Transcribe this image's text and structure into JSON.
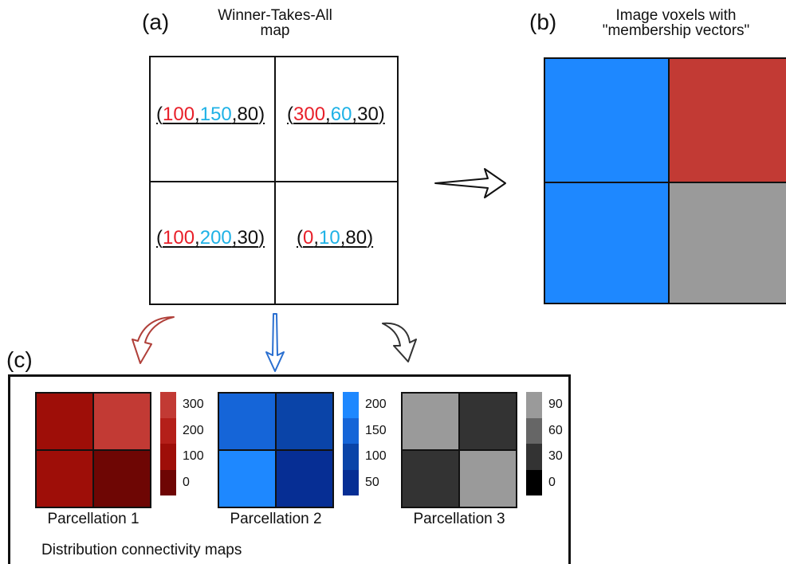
{
  "panel_a": {
    "label": "(a)",
    "title_line1": "Winner-Takes-All",
    "title_line2": "map",
    "cells": [
      {
        "v1": "100",
        "v2": "150",
        "v3": "80"
      },
      {
        "v1": "300",
        "v2": "60",
        "v3": "30"
      },
      {
        "v1": "100",
        "v2": "200",
        "v3": "30"
      },
      {
        "v1": "0",
        "v2": "10",
        "v3": "80"
      }
    ]
  },
  "panel_b": {
    "label": "(b)",
    "title_line1": "Image voxels with",
    "title_line2": "\"membership vectors\"",
    "cells": [
      {
        "color": "#1e88ff"
      },
      {
        "color": "#c23a34"
      },
      {
        "color": "#1e88ff"
      },
      {
        "color": "#9a9a9a"
      }
    ]
  },
  "panel_c": {
    "label": "(c)",
    "footer": "Distribution connectivity maps",
    "maps": [
      {
        "name": "Parcellation 1",
        "cells": [
          "#9e0e08",
          "#c23a34",
          "#9e0e08",
          "#6e0604"
        ],
        "colorbar": [
          "#c23a34",
          "#b41f19",
          "#9e0e08",
          "#6e0604"
        ],
        "ticks": [
          "300",
          "200",
          "100",
          "0"
        ]
      },
      {
        "name": "Parcellation 2",
        "cells": [
          "#1565d8",
          "#0a44a8",
          "#1e88ff",
          "#062e94"
        ],
        "colorbar": [
          "#1e88ff",
          "#1565d8",
          "#0a44a8",
          "#062e94"
        ],
        "ticks": [
          "200",
          "150",
          "100",
          "50"
        ]
      },
      {
        "name": "Parcellation 3",
        "cells": [
          "#9a9a9a",
          "#333333",
          "#333333",
          "#9a9a9a"
        ],
        "colorbar": [
          "#9a9a9a",
          "#666666",
          "#333333",
          "#000000"
        ],
        "ticks": [
          "90",
          "60",
          "30",
          "0"
        ]
      }
    ]
  },
  "colors": {
    "red": "#e8202a",
    "cyan": "#1fb2e6",
    "arrow_red": "#b0403a",
    "arrow_blue": "#2a6fd0",
    "arrow_dark": "#333333"
  }
}
